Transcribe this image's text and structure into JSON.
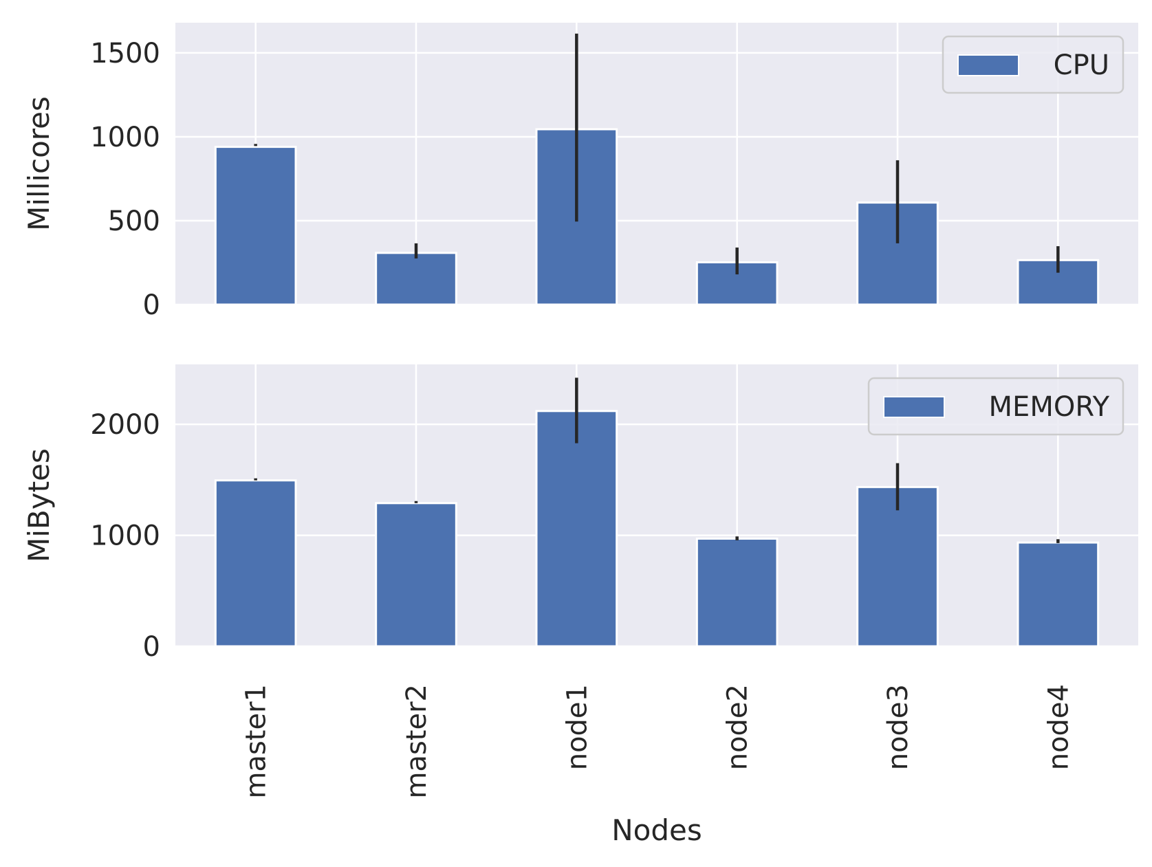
{
  "chart_data": [
    {
      "type": "bar",
      "categories": [
        "master1",
        "master2",
        "node1",
        "node2",
        "node3",
        "node4"
      ],
      "series": [
        {
          "name": "CPU",
          "values": [
            940,
            308,
            1045,
            252,
            608,
            265
          ],
          "err_low": [
            945,
            275,
            495,
            180,
            365,
            190
          ],
          "err_high": [
            945,
            365,
            1615,
            340,
            860,
            348
          ]
        }
      ],
      "xlabel": "",
      "ylabel": "Millicores",
      "ylim": [
        0,
        1680
      ],
      "yticks": [
        0,
        500,
        1000,
        1500
      ],
      "ytick_labels": [
        "0",
        "500",
        "1000",
        "1500"
      ],
      "grid": true,
      "legend": "top-right",
      "color": "#4c72b0"
    },
    {
      "type": "bar",
      "categories": [
        "master1",
        "master2",
        "node1",
        "node2",
        "node3",
        "node4"
      ],
      "series": [
        {
          "name": "MEMORY",
          "values": [
            1495,
            1290,
            2120,
            970,
            1435,
            935
          ],
          "err_low": [
            1495,
            1290,
            1830,
            955,
            1225,
            930
          ],
          "err_high": [
            1495,
            1300,
            2420,
            990,
            1650,
            965
          ]
        }
      ],
      "xlabel": "Nodes",
      "ylabel": "MiBytes",
      "ylim": [
        0,
        2540
      ],
      "yticks": [
        0,
        1000,
        2000
      ],
      "ytick_labels": [
        "0",
        "1000",
        "2000"
      ],
      "xtick_labels": [
        "master1",
        "master2",
        "node1",
        "node2",
        "node3",
        "node4"
      ],
      "grid": true,
      "legend": "top-right",
      "color": "#4c72b0"
    }
  ],
  "colors": {
    "bar": "#4c72b0",
    "plot_background": "#eaeaf2",
    "grid": "#ffffff",
    "errorbar": "#262626",
    "text": "#262626"
  }
}
